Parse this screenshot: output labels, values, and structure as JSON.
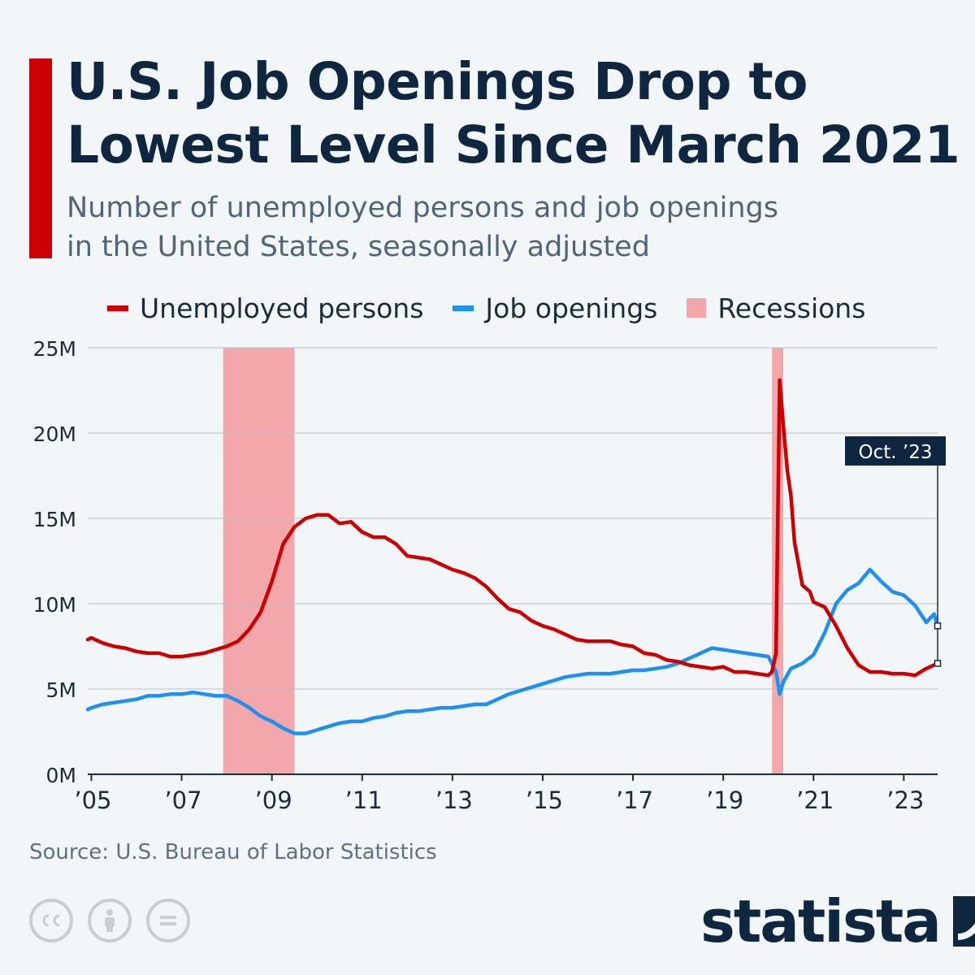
{
  "header": {
    "title_lines": [
      "U.S. Job Openings Drop to",
      "Lowest Level Since March 2021"
    ],
    "subtitle_lines": [
      "Number of unemployed persons and job openings",
      "in the United States, seasonally adjusted"
    ]
  },
  "colors": {
    "accent": "#cc0000",
    "unemployed": "#cc0000",
    "openings": "#1e90f0",
    "recession": "#f4a7ab",
    "text_dark": "#0f2640",
    "grid": "#b4bfca"
  },
  "legend": [
    {
      "label": "Unemployed persons",
      "kind": "line",
      "color": "#cc0000"
    },
    {
      "label": "Job openings",
      "kind": "line",
      "color": "#1e90f0"
    },
    {
      "label": "Recessions",
      "kind": "box",
      "color": "#f4a7ab"
    }
  ],
  "chart_data": {
    "type": "line",
    "x_unit": "year (decimal)",
    "xlim": [
      2004.92,
      2023.75
    ],
    "ylim": [
      0,
      25
    ],
    "y_ticks": [
      0,
      5,
      10,
      15,
      20,
      25
    ],
    "y_tick_labels": [
      "0M",
      "5M",
      "10M",
      "15M",
      "20M",
      "25M"
    ],
    "x_ticks": [
      2005,
      2007,
      2009,
      2011,
      2013,
      2015,
      2017,
      2019,
      2021,
      2023
    ],
    "x_tick_labels": [
      "’05",
      "’07",
      "’09",
      "’11",
      "’13",
      "’15",
      "’17",
      "’19",
      "’21",
      "’23"
    ],
    "grid": true,
    "legend_position": "top",
    "recessions": [
      [
        2007.92,
        2009.5
      ],
      [
        2020.08,
        2020.33
      ]
    ],
    "annotation": {
      "label": "Oct. ’23",
      "x": 2023.75
    },
    "series": [
      {
        "name": "Unemployed persons",
        "color": "#cc0000",
        "points": [
          [
            2004.92,
            7.9
          ],
          [
            2005.0,
            8.0
          ],
          [
            2005.25,
            7.7
          ],
          [
            2005.5,
            7.5
          ],
          [
            2005.75,
            7.4
          ],
          [
            2006.0,
            7.2
          ],
          [
            2006.25,
            7.1
          ],
          [
            2006.5,
            7.1
          ],
          [
            2006.75,
            6.9
          ],
          [
            2007.0,
            6.9
          ],
          [
            2007.25,
            7.0
          ],
          [
            2007.5,
            7.1
          ],
          [
            2007.75,
            7.3
          ],
          [
            2008.0,
            7.5
          ],
          [
            2008.25,
            7.8
          ],
          [
            2008.5,
            8.5
          ],
          [
            2008.75,
            9.5
          ],
          [
            2009.0,
            11.3
          ],
          [
            2009.25,
            13.5
          ],
          [
            2009.5,
            14.5
          ],
          [
            2009.75,
            15.0
          ],
          [
            2010.0,
            15.2
          ],
          [
            2010.25,
            15.2
          ],
          [
            2010.5,
            14.7
          ],
          [
            2010.75,
            14.8
          ],
          [
            2011.0,
            14.2
          ],
          [
            2011.25,
            13.9
          ],
          [
            2011.5,
            13.9
          ],
          [
            2011.75,
            13.5
          ],
          [
            2012.0,
            12.8
          ],
          [
            2012.25,
            12.7
          ],
          [
            2012.5,
            12.6
          ],
          [
            2012.75,
            12.3
          ],
          [
            2013.0,
            12.0
          ],
          [
            2013.25,
            11.8
          ],
          [
            2013.5,
            11.5
          ],
          [
            2013.75,
            11.0
          ],
          [
            2014.0,
            10.3
          ],
          [
            2014.25,
            9.7
          ],
          [
            2014.5,
            9.5
          ],
          [
            2014.75,
            9.0
          ],
          [
            2015.0,
            8.7
          ],
          [
            2015.25,
            8.5
          ],
          [
            2015.5,
            8.2
          ],
          [
            2015.75,
            7.9
          ],
          [
            2016.0,
            7.8
          ],
          [
            2016.25,
            7.8
          ],
          [
            2016.5,
            7.8
          ],
          [
            2016.75,
            7.6
          ],
          [
            2017.0,
            7.5
          ],
          [
            2017.25,
            7.1
          ],
          [
            2017.5,
            7.0
          ],
          [
            2017.75,
            6.7
          ],
          [
            2018.0,
            6.6
          ],
          [
            2018.25,
            6.4
          ],
          [
            2018.5,
            6.3
          ],
          [
            2018.75,
            6.2
          ],
          [
            2019.0,
            6.3
          ],
          [
            2019.25,
            6.0
          ],
          [
            2019.5,
            6.0
          ],
          [
            2019.75,
            5.9
          ],
          [
            2020.0,
            5.8
          ],
          [
            2020.08,
            6.0
          ],
          [
            2020.17,
            7.1
          ],
          [
            2020.25,
            23.1
          ],
          [
            2020.33,
            20.5
          ],
          [
            2020.42,
            17.8
          ],
          [
            2020.5,
            16.3
          ],
          [
            2020.58,
            13.6
          ],
          [
            2020.75,
            11.1
          ],
          [
            2020.92,
            10.7
          ],
          [
            2021.0,
            10.1
          ],
          [
            2021.25,
            9.8
          ],
          [
            2021.5,
            8.7
          ],
          [
            2021.75,
            7.4
          ],
          [
            2022.0,
            6.4
          ],
          [
            2022.25,
            6.0
          ],
          [
            2022.5,
            6.0
          ],
          [
            2022.75,
            5.9
          ],
          [
            2023.0,
            5.9
          ],
          [
            2023.25,
            5.8
          ],
          [
            2023.5,
            6.2
          ],
          [
            2023.75,
            6.5
          ]
        ]
      },
      {
        "name": "Job openings",
        "color": "#1e90f0",
        "points": [
          [
            2004.92,
            3.8
          ],
          [
            2005.0,
            3.9
          ],
          [
            2005.25,
            4.1
          ],
          [
            2005.5,
            4.2
          ],
          [
            2005.75,
            4.3
          ],
          [
            2006.0,
            4.4
          ],
          [
            2006.25,
            4.6
          ],
          [
            2006.5,
            4.6
          ],
          [
            2006.75,
            4.7
          ],
          [
            2007.0,
            4.7
          ],
          [
            2007.25,
            4.8
          ],
          [
            2007.5,
            4.7
          ],
          [
            2007.75,
            4.6
          ],
          [
            2008.0,
            4.6
          ],
          [
            2008.25,
            4.3
          ],
          [
            2008.5,
            3.9
          ],
          [
            2008.75,
            3.4
          ],
          [
            2009.0,
            3.1
          ],
          [
            2009.25,
            2.7
          ],
          [
            2009.5,
            2.4
          ],
          [
            2009.75,
            2.4
          ],
          [
            2010.0,
            2.6
          ],
          [
            2010.25,
            2.8
          ],
          [
            2010.5,
            3.0
          ],
          [
            2010.75,
            3.1
          ],
          [
            2011.0,
            3.1
          ],
          [
            2011.25,
            3.3
          ],
          [
            2011.5,
            3.4
          ],
          [
            2011.75,
            3.6
          ],
          [
            2012.0,
            3.7
          ],
          [
            2012.25,
            3.7
          ],
          [
            2012.5,
            3.8
          ],
          [
            2012.75,
            3.9
          ],
          [
            2013.0,
            3.9
          ],
          [
            2013.25,
            4.0
          ],
          [
            2013.5,
            4.1
          ],
          [
            2013.75,
            4.1
          ],
          [
            2014.0,
            4.4
          ],
          [
            2014.25,
            4.7
          ],
          [
            2014.5,
            4.9
          ],
          [
            2014.75,
            5.1
          ],
          [
            2015.0,
            5.3
          ],
          [
            2015.25,
            5.5
          ],
          [
            2015.5,
            5.7
          ],
          [
            2015.75,
            5.8
          ],
          [
            2016.0,
            5.9
          ],
          [
            2016.25,
            5.9
          ],
          [
            2016.5,
            5.9
          ],
          [
            2016.75,
            6.0
          ],
          [
            2017.0,
            6.1
          ],
          [
            2017.25,
            6.1
          ],
          [
            2017.5,
            6.2
          ],
          [
            2017.75,
            6.3
          ],
          [
            2018.0,
            6.5
          ],
          [
            2018.25,
            6.8
          ],
          [
            2018.5,
            7.1
          ],
          [
            2018.75,
            7.4
          ],
          [
            2019.0,
            7.3
          ],
          [
            2019.25,
            7.2
          ],
          [
            2019.5,
            7.1
          ],
          [
            2019.75,
            7.0
          ],
          [
            2020.0,
            6.9
          ],
          [
            2020.17,
            6.0
          ],
          [
            2020.25,
            4.7
          ],
          [
            2020.33,
            5.4
          ],
          [
            2020.5,
            6.2
          ],
          [
            2020.75,
            6.5
          ],
          [
            2021.0,
            7.0
          ],
          [
            2021.25,
            8.3
          ],
          [
            2021.5,
            10.0
          ],
          [
            2021.75,
            10.8
          ],
          [
            2022.0,
            11.2
          ],
          [
            2022.25,
            12.0
          ],
          [
            2022.5,
            11.3
          ],
          [
            2022.75,
            10.7
          ],
          [
            2023.0,
            10.5
          ],
          [
            2023.25,
            9.9
          ],
          [
            2023.5,
            8.9
          ],
          [
            2023.67,
            9.4
          ],
          [
            2023.75,
            8.7
          ]
        ]
      }
    ]
  },
  "footer": {
    "source": "Source: U.S. Bureau of Labor Statistics",
    "brand": "statista",
    "license_icons": [
      "cc-icon",
      "attribution-icon",
      "no-derivatives-icon"
    ]
  }
}
